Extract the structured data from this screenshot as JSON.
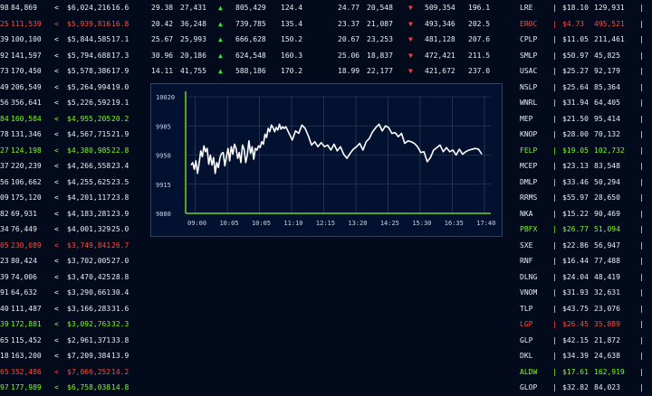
{
  "left_rows": [
    {
      "a": "98",
      "b": "84,869",
      "c": "<",
      "d": "$6,024,216",
      "e": "16.6",
      "cls": "w"
    },
    {
      "a": "25",
      "b": "111,539",
      "c": "<",
      "d": "$5,939,816",
      "e": "16.8",
      "cls": "r"
    },
    {
      "a": "39",
      "b": "100,100",
      "c": "<",
      "d": "$5,844,585",
      "e": "17.1",
      "cls": "w"
    },
    {
      "a": "92",
      "b": "141,597",
      "c": "<",
      "d": "$5,794,688",
      "e": "17.3",
      "cls": "w"
    },
    {
      "a": "73",
      "b": "170,450",
      "c": "<",
      "d": "$5,578,386",
      "e": "17.9",
      "cls": "w"
    },
    {
      "a": "49",
      "b": "206,549",
      "c": "<",
      "d": "$5,264,994",
      "e": "19.0",
      "cls": "w"
    },
    {
      "a": "56",
      "b": "356,641",
      "c": "<",
      "d": "$5,226,592",
      "e": "19.1",
      "cls": "w"
    },
    {
      "a": "84",
      "b": "160,584",
      "c": "<",
      "d": "$4,955,205",
      "e": "20.2",
      "cls": "g"
    },
    {
      "a": "78",
      "b": "131,346",
      "c": "<",
      "d": "$4,567,715",
      "e": "21.9",
      "cls": "w"
    },
    {
      "a": "27",
      "b": "124,198",
      "c": "<",
      "d": "$4,380,985",
      "e": "22.8",
      "cls": "g"
    },
    {
      "a": "37",
      "b": "220,239",
      "c": "<",
      "d": "$4,266,558",
      "e": "23.4",
      "cls": "w"
    },
    {
      "a": "56",
      "b": "106,662",
      "c": "<",
      "d": "$4,255,625",
      "e": "23.5",
      "cls": "w"
    },
    {
      "a": "09",
      "b": "175,120",
      "c": "<",
      "d": "$4,201,117",
      "e": "23.8",
      "cls": "w"
    },
    {
      "a": "82",
      "b": "69,931",
      "c": "<",
      "d": "$4,183,281",
      "e": "23.9",
      "cls": "w"
    },
    {
      "a": "34",
      "b": "76,449",
      "c": "<",
      "d": "$4,001,329",
      "e": "25.0",
      "cls": "w"
    },
    {
      "a": "05",
      "b": "230,089",
      "c": "<",
      "d": "$3,749,841",
      "e": "26.7",
      "cls": "r"
    },
    {
      "a": "23",
      "b": "80,424",
      "c": "<",
      "d": "$3,702,005",
      "e": "27.0",
      "cls": "w"
    },
    {
      "a": "39",
      "b": "74,006",
      "c": "<",
      "d": "$3,470,425",
      "e": "28.8",
      "cls": "w"
    },
    {
      "a": "91",
      "b": "64,632",
      "c": "<",
      "d": "$3,290,661",
      "e": "30.4",
      "cls": "w"
    },
    {
      "a": "40",
      "b": "111,487",
      "c": "<",
      "d": "$3,166,283",
      "e": "31.6",
      "cls": "w"
    },
    {
      "a": "39",
      "b": "172,881",
      "c": "<",
      "d": "$3,092,763",
      "e": "32.3",
      "cls": "g"
    },
    {
      "a": "65",
      "b": "115,452",
      "c": "<",
      "d": "$2,961,371",
      "e": "33.8",
      "cls": "w"
    },
    {
      "a": "18",
      "b": "163,200",
      "c": "<",
      "d": "$7,209,384",
      "e": "13.9",
      "cls": "w"
    },
    {
      "a": "65",
      "b": "352,486",
      "c": "<",
      "d": "$7,066,252",
      "e": "14.2",
      "cls": "r"
    },
    {
      "a": "97",
      "b": "177,989",
      "c": "<",
      "d": "$6,758,038",
      "e": "14.8",
      "cls": "g"
    }
  ],
  "mid_rows": [
    {
      "a": "29.38",
      "b": "27,431",
      "arrow": "up",
      "c": "805,429",
      "d": "124.4",
      "e": "24.77",
      "f": "20,548",
      "arrow2": "dn",
      "g": "509,354",
      "h": "196.1"
    },
    {
      "a": "20.42",
      "b": "36,248",
      "arrow": "up",
      "c": "739,785",
      "d": "135.4",
      "e": "23.37",
      "f": "21,087",
      "arrow2": "dn",
      "g": "493,346",
      "h": "202.5"
    },
    {
      "a": "25.67",
      "b": "25,993",
      "arrow": "up",
      "c": "666,628",
      "d": "150.2",
      "e": "20.67",
      "f": "23,253",
      "arrow2": "dn",
      "g": "481,128",
      "h": "207.6"
    },
    {
      "a": "30.96",
      "b": "20,186",
      "arrow": "up",
      "c": "624,548",
      "d": "160.3",
      "e": "25.06",
      "f": "18,837",
      "arrow2": "dn",
      "g": "472,421",
      "h": "211.5"
    },
    {
      "a": "14.11",
      "b": "41,755",
      "arrow": "up",
      "c": "588,186",
      "d": "170.2",
      "e": "18.99",
      "f": "22,177",
      "arrow2": "dn",
      "g": "421,672",
      "h": "237.0"
    }
  ],
  "arrows": {
    "up": "▲",
    "dn": "▼"
  },
  "right_rows": [
    {
      "sym": "LRE",
      "sep": "|",
      "price": "$18.10",
      "vol": "129,931",
      "cls": "w"
    },
    {
      "sym": "EROC",
      "sep": "|",
      "price": "$4.73",
      "vol": "495,521",
      "cls": "r"
    },
    {
      "sym": "CPLP",
      "sep": "|",
      "price": "$11.05",
      "vol": "211,461",
      "cls": "w"
    },
    {
      "sym": "SMLP",
      "sep": "|",
      "price": "$50.97",
      "vol": "45,825",
      "cls": "w"
    },
    {
      "sym": "USAC",
      "sep": "|",
      "price": "$25.27",
      "vol": "92,179",
      "cls": "w"
    },
    {
      "sym": "NSLP",
      "sep": "|",
      "price": "$25.64",
      "vol": "85,364",
      "cls": "w"
    },
    {
      "sym": "WNRL",
      "sep": "|",
      "price": "$31.94",
      "vol": "64,405",
      "cls": "w"
    },
    {
      "sym": "MEP",
      "sep": "|",
      "price": "$21.50",
      "vol": "95,414",
      "cls": "w"
    },
    {
      "sym": "KNOP",
      "sep": "|",
      "price": "$28.00",
      "vol": "70,132",
      "cls": "w"
    },
    {
      "sym": "FELP",
      "sep": "|",
      "price": "$19.05",
      "vol": "102,732",
      "cls": "g"
    },
    {
      "sym": "MCEP",
      "sep": "|",
      "price": "$23.13",
      "vol": "83,548",
      "cls": "w"
    },
    {
      "sym": "DMLP",
      "sep": "|",
      "price": "$33.46",
      "vol": "50,294",
      "cls": "w"
    },
    {
      "sym": "RRMS",
      "sep": "|",
      "price": "$55.97",
      "vol": "28,650",
      "cls": "w"
    },
    {
      "sym": "NKA",
      "sep": "|",
      "price": "$15.22",
      "vol": "90,469",
      "cls": "w"
    },
    {
      "sym": "PBFX",
      "sep": "|",
      "price": "$26.77",
      "vol": "51,094",
      "cls": "g"
    },
    {
      "sym": "SXE",
      "sep": "|",
      "price": "$22.86",
      "vol": "56,947",
      "cls": "w"
    },
    {
      "sym": "RNF",
      "sep": "|",
      "price": "$16.44",
      "vol": "77,488",
      "cls": "w"
    },
    {
      "sym": "DLNG",
      "sep": "|",
      "price": "$24.04",
      "vol": "48,419",
      "cls": "w"
    },
    {
      "sym": "VNOM",
      "sep": "|",
      "price": "$31.93",
      "vol": "32,631",
      "cls": "w"
    },
    {
      "sym": "TLP",
      "sep": "|",
      "price": "$43.75",
      "vol": "23,076",
      "cls": "w"
    },
    {
      "sym": "LGP",
      "sep": "|",
      "price": "$26.45",
      "vol": "35,889",
      "cls": "r"
    },
    {
      "sym": "GLP",
      "sep": "|",
      "price": "$42.15",
      "vol": "21,872",
      "cls": "w"
    },
    {
      "sym": "DKL",
      "sep": "|",
      "price": "$34.39",
      "vol": "24,638",
      "cls": "w"
    },
    {
      "sym": "ALDW",
      "sep": "|",
      "price": "$17.61",
      "vol": "162,919",
      "cls": "g"
    },
    {
      "sym": "GLOP",
      "sep": "|",
      "price": "$32.82",
      "vol": "84,023",
      "cls": "w"
    }
  ],
  "colors": {
    "axis": "#6fd21e",
    "line": "#ffffff",
    "grid": "#3a4868",
    "white": "#e8eef5",
    "green": "#7cfc1a",
    "red": "#ff4a3a"
  },
  "chart_data": {
    "type": "line",
    "x_ticks": [
      "09:00",
      "10:05",
      "10:05",
      "11:10",
      "12:15",
      "13:20",
      "14:25",
      "15:30",
      "16:35",
      "17:40"
    ],
    "y_ticks": [
      "10020",
      "9985",
      "9950",
      "9915",
      "9880"
    ],
    "ylim": [
      9880,
      10020
    ],
    "x_labels_at": [
      0,
      1,
      2,
      3,
      4,
      5,
      6,
      7,
      8,
      9
    ],
    "series": [
      {
        "x": [
          0.05,
          0.1,
          0.15,
          0.2,
          0.25,
          0.3,
          0.35,
          0.4,
          0.45,
          0.5,
          0.55,
          0.6,
          0.65,
          0.7,
          0.75,
          0.8,
          0.85,
          0.9,
          0.95,
          1.0,
          1.05,
          1.1,
          1.15,
          1.2,
          1.25,
          1.3,
          1.35,
          1.4,
          1.45,
          1.5,
          1.55,
          1.6,
          1.65,
          1.7,
          1.75,
          1.8,
          1.85,
          1.9,
          1.95,
          2.0,
          2.05,
          2.1,
          2.15,
          2.2,
          2.25,
          2.3,
          2.35,
          2.4,
          2.45,
          2.5,
          2.55,
          2.6,
          2.65,
          2.7,
          2.75,
          2.8,
          2.85,
          2.9,
          2.95,
          3.0,
          3.1,
          3.2,
          3.3,
          3.4,
          3.5,
          3.6,
          3.7,
          3.8,
          3.9,
          4.0,
          4.1,
          4.2,
          4.3,
          4.4,
          4.5,
          4.6,
          4.7,
          4.8,
          4.9,
          5.0,
          5.1,
          5.2,
          5.3,
          5.4,
          5.5,
          5.6,
          5.7,
          5.8,
          5.9,
          6.0,
          6.1,
          6.2,
          6.3,
          6.4,
          6.5,
          6.6,
          6.7,
          6.8,
          6.9,
          7.0,
          7.1,
          7.2,
          7.3,
          7.4,
          7.5,
          7.6,
          7.7,
          7.8,
          7.9,
          8.0,
          8.1,
          8.2,
          8.3,
          8.4,
          8.5,
          8.6,
          8.7,
          8.8,
          8.9,
          9.0,
          9.1
        ],
        "values": [
          9938,
          9941,
          9933,
          9943,
          9928,
          9940,
          9955,
          9948,
          9961,
          9954,
          9958,
          9939,
          9950,
          9938,
          9947,
          9928,
          9941,
          9935,
          9947,
          9952,
          9953,
          9937,
          9948,
          9958,
          9943,
          9960,
          9951,
          9963,
          9958,
          9946,
          9953,
          9941,
          9962,
          9957,
          9941,
          9950,
          9967,
          9952,
          9960,
          9945,
          9958,
          9956,
          9961,
          9959,
          9966,
          9963,
          9975,
          9971,
          9982,
          9978,
          9986,
          9983,
          9978,
          9983,
          9980,
          9987,
          9981,
          9984,
          9982,
          9984,
          9976,
          9968,
          9979,
          9976,
          9986,
          9982,
          9973,
          9962,
          9966,
          9960,
          9965,
          9960,
          9962,
          9956,
          9963,
          9955,
          9960,
          9951,
          9946,
          9952,
          9957,
          9960,
          9964,
          9956,
          9966,
          9970,
          9978,
          9983,
          9987,
          9979,
          9985,
          9983,
          9976,
          9977,
          9972,
          9976,
          9964,
          9967,
          9966,
          9964,
          9960,
          9953,
          9954,
          9942,
          9947,
          9956,
          9959,
          9962,
          9954,
          9959,
          9954,
          9956,
          9950,
          9957,
          9951,
          9954,
          9956,
          9957,
          9958,
          9957,
          9951
        ]
      }
    ],
    "grid": true
  }
}
